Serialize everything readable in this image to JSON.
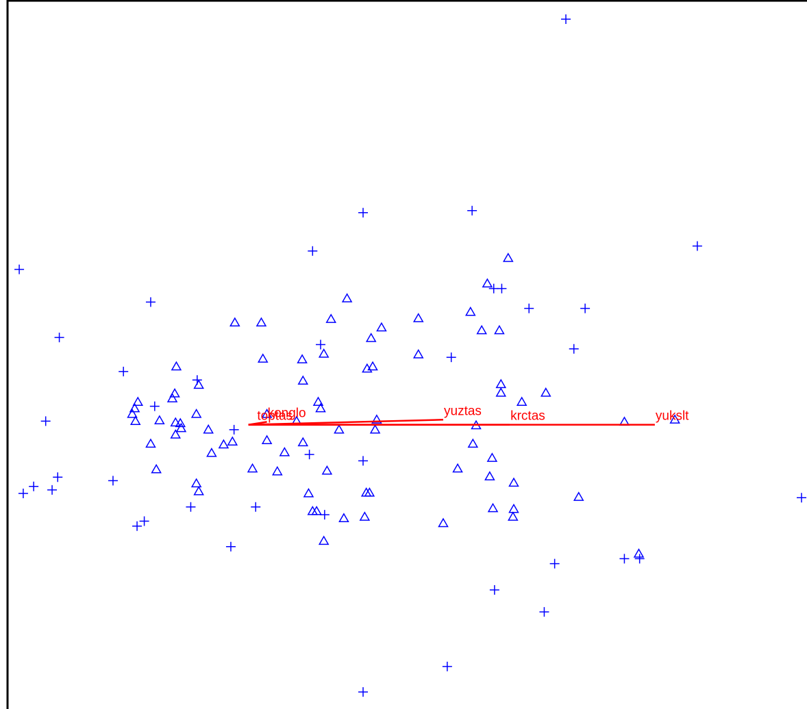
{
  "chart_data": {
    "type": "scatter",
    "title": "",
    "xlabel": "",
    "ylabel": "",
    "xlim": [
      0,
      100
    ],
    "ylim": [
      0,
      100
    ],
    "grid": false,
    "series": [
      {
        "marker": "plus",
        "color": "#0000ff",
        "points": [
          [
            70.6,
            97.3
          ],
          [
            45.3,
            70.0
          ],
          [
            58.9,
            70.3
          ],
          [
            87.0,
            65.3
          ],
          [
            2.4,
            62.0
          ],
          [
            39.0,
            64.6
          ],
          [
            18.8,
            57.4
          ],
          [
            61.6,
            59.3
          ],
          [
            62.6,
            59.3
          ],
          [
            66.0,
            56.5
          ],
          [
            73.0,
            56.5
          ],
          [
            7.4,
            52.4
          ],
          [
            40.0,
            51.4
          ],
          [
            56.3,
            49.6
          ],
          [
            71.6,
            50.8
          ],
          [
            15.4,
            47.6
          ],
          [
            24.6,
            46.4
          ],
          [
            19.3,
            42.7
          ],
          [
            5.7,
            40.6
          ],
          [
            29.2,
            39.4
          ],
          [
            38.6,
            35.9
          ],
          [
            45.3,
            35.0
          ],
          [
            7.2,
            32.7
          ],
          [
            14.1,
            32.2
          ],
          [
            4.2,
            31.4
          ],
          [
            2.9,
            30.4
          ],
          [
            6.5,
            30.9
          ],
          [
            23.8,
            28.5
          ],
          [
            31.9,
            28.5
          ],
          [
            40.5,
            27.4
          ],
          [
            100.0,
            29.8
          ],
          [
            18.0,
            26.5
          ],
          [
            17.1,
            25.8
          ],
          [
            28.8,
            22.9
          ],
          [
            77.9,
            21.2
          ],
          [
            79.8,
            21.2
          ],
          [
            69.2,
            20.5
          ],
          [
            61.7,
            16.8
          ],
          [
            67.9,
            13.7
          ],
          [
            55.8,
            6.0
          ],
          [
            45.3,
            2.4
          ]
        ]
      },
      {
        "marker": "triangle",
        "color": "#0000ff",
        "points": [
          [
            63.4,
            63.6
          ],
          [
            60.8,
            60.0
          ],
          [
            43.3,
            57.9
          ],
          [
            58.7,
            56.0
          ],
          [
            41.3,
            55.0
          ],
          [
            52.2,
            55.1
          ],
          [
            29.3,
            54.5
          ],
          [
            32.6,
            54.5
          ],
          [
            47.6,
            53.8
          ],
          [
            60.1,
            53.4
          ],
          [
            62.3,
            53.4
          ],
          [
            46.3,
            52.3
          ],
          [
            52.2,
            50.0
          ],
          [
            40.4,
            50.1
          ],
          [
            32.8,
            49.4
          ],
          [
            37.7,
            49.3
          ],
          [
            22.0,
            48.3
          ],
          [
            45.8,
            48.0
          ],
          [
            46.5,
            48.3
          ],
          [
            37.8,
            46.3
          ],
          [
            24.8,
            45.7
          ],
          [
            62.5,
            45.8
          ],
          [
            62.5,
            44.6
          ],
          [
            68.1,
            44.6
          ],
          [
            21.8,
            44.5
          ],
          [
            21.5,
            43.8
          ],
          [
            17.2,
            43.3
          ],
          [
            39.7,
            43.3
          ],
          [
            65.1,
            43.3
          ],
          [
            16.8,
            42.4
          ],
          [
            40.0,
            42.4
          ],
          [
            16.5,
            41.6
          ],
          [
            24.5,
            41.6
          ],
          [
            33.3,
            41.6
          ],
          [
            16.9,
            40.6
          ],
          [
            19.9,
            40.7
          ],
          [
            21.9,
            40.4
          ],
          [
            22.5,
            40.3
          ],
          [
            77.9,
            40.5
          ],
          [
            84.2,
            40.8
          ],
          [
            37.0,
            40.6
          ],
          [
            47.0,
            40.8
          ],
          [
            22.6,
            39.6
          ],
          [
            26.0,
            39.4
          ],
          [
            42.3,
            39.4
          ],
          [
            46.8,
            39.4
          ],
          [
            59.4,
            40.0
          ],
          [
            21.9,
            38.7
          ],
          [
            33.3,
            37.9
          ],
          [
            18.8,
            37.4
          ],
          [
            27.9,
            37.3
          ],
          [
            29.0,
            37.7
          ],
          [
            37.8,
            37.6
          ],
          [
            59.0,
            37.4
          ],
          [
            26.4,
            36.1
          ],
          [
            35.5,
            36.2
          ],
          [
            61.4,
            35.4
          ],
          [
            19.5,
            33.8
          ],
          [
            31.5,
            33.9
          ],
          [
            34.6,
            33.5
          ],
          [
            40.8,
            33.6
          ],
          [
            57.1,
            33.9
          ],
          [
            61.1,
            32.8
          ],
          [
            24.5,
            31.8
          ],
          [
            64.1,
            31.9
          ],
          [
            24.8,
            30.7
          ],
          [
            45.7,
            30.5
          ],
          [
            46.1,
            30.5
          ],
          [
            38.5,
            30.4
          ],
          [
            72.2,
            29.9
          ],
          [
            61.5,
            28.3
          ],
          [
            64.1,
            28.2
          ],
          [
            39.0,
            27.9
          ],
          [
            39.5,
            27.9
          ],
          [
            64.0,
            27.1
          ],
          [
            45.5,
            27.1
          ],
          [
            42.9,
            26.9
          ],
          [
            55.3,
            26.2
          ],
          [
            40.4,
            23.7
          ],
          [
            79.7,
            21.9
          ]
        ]
      }
    ],
    "vectors": [
      {
        "label": "yukslt",
        "end": [
          81.7,
          40.1
        ]
      },
      {
        "label": "krctas",
        "end": [
          63.6,
          40.1
        ]
      },
      {
        "label": "yuztas",
        "end": [
          55.3,
          40.8
        ]
      },
      {
        "label": "konglo",
        "end": [
          33.3,
          40.5
        ]
      },
      {
        "label": "toptas",
        "end": [
          32.0,
          40.1
        ]
      }
    ],
    "vector_origin": [
      31.0,
      40.1
    ],
    "colors": {
      "points": "#0000ff",
      "vectors": "#ff0000",
      "frame": "#000000",
      "background": "#ffffff",
      "ylabel": "#00b0b0"
    }
  }
}
